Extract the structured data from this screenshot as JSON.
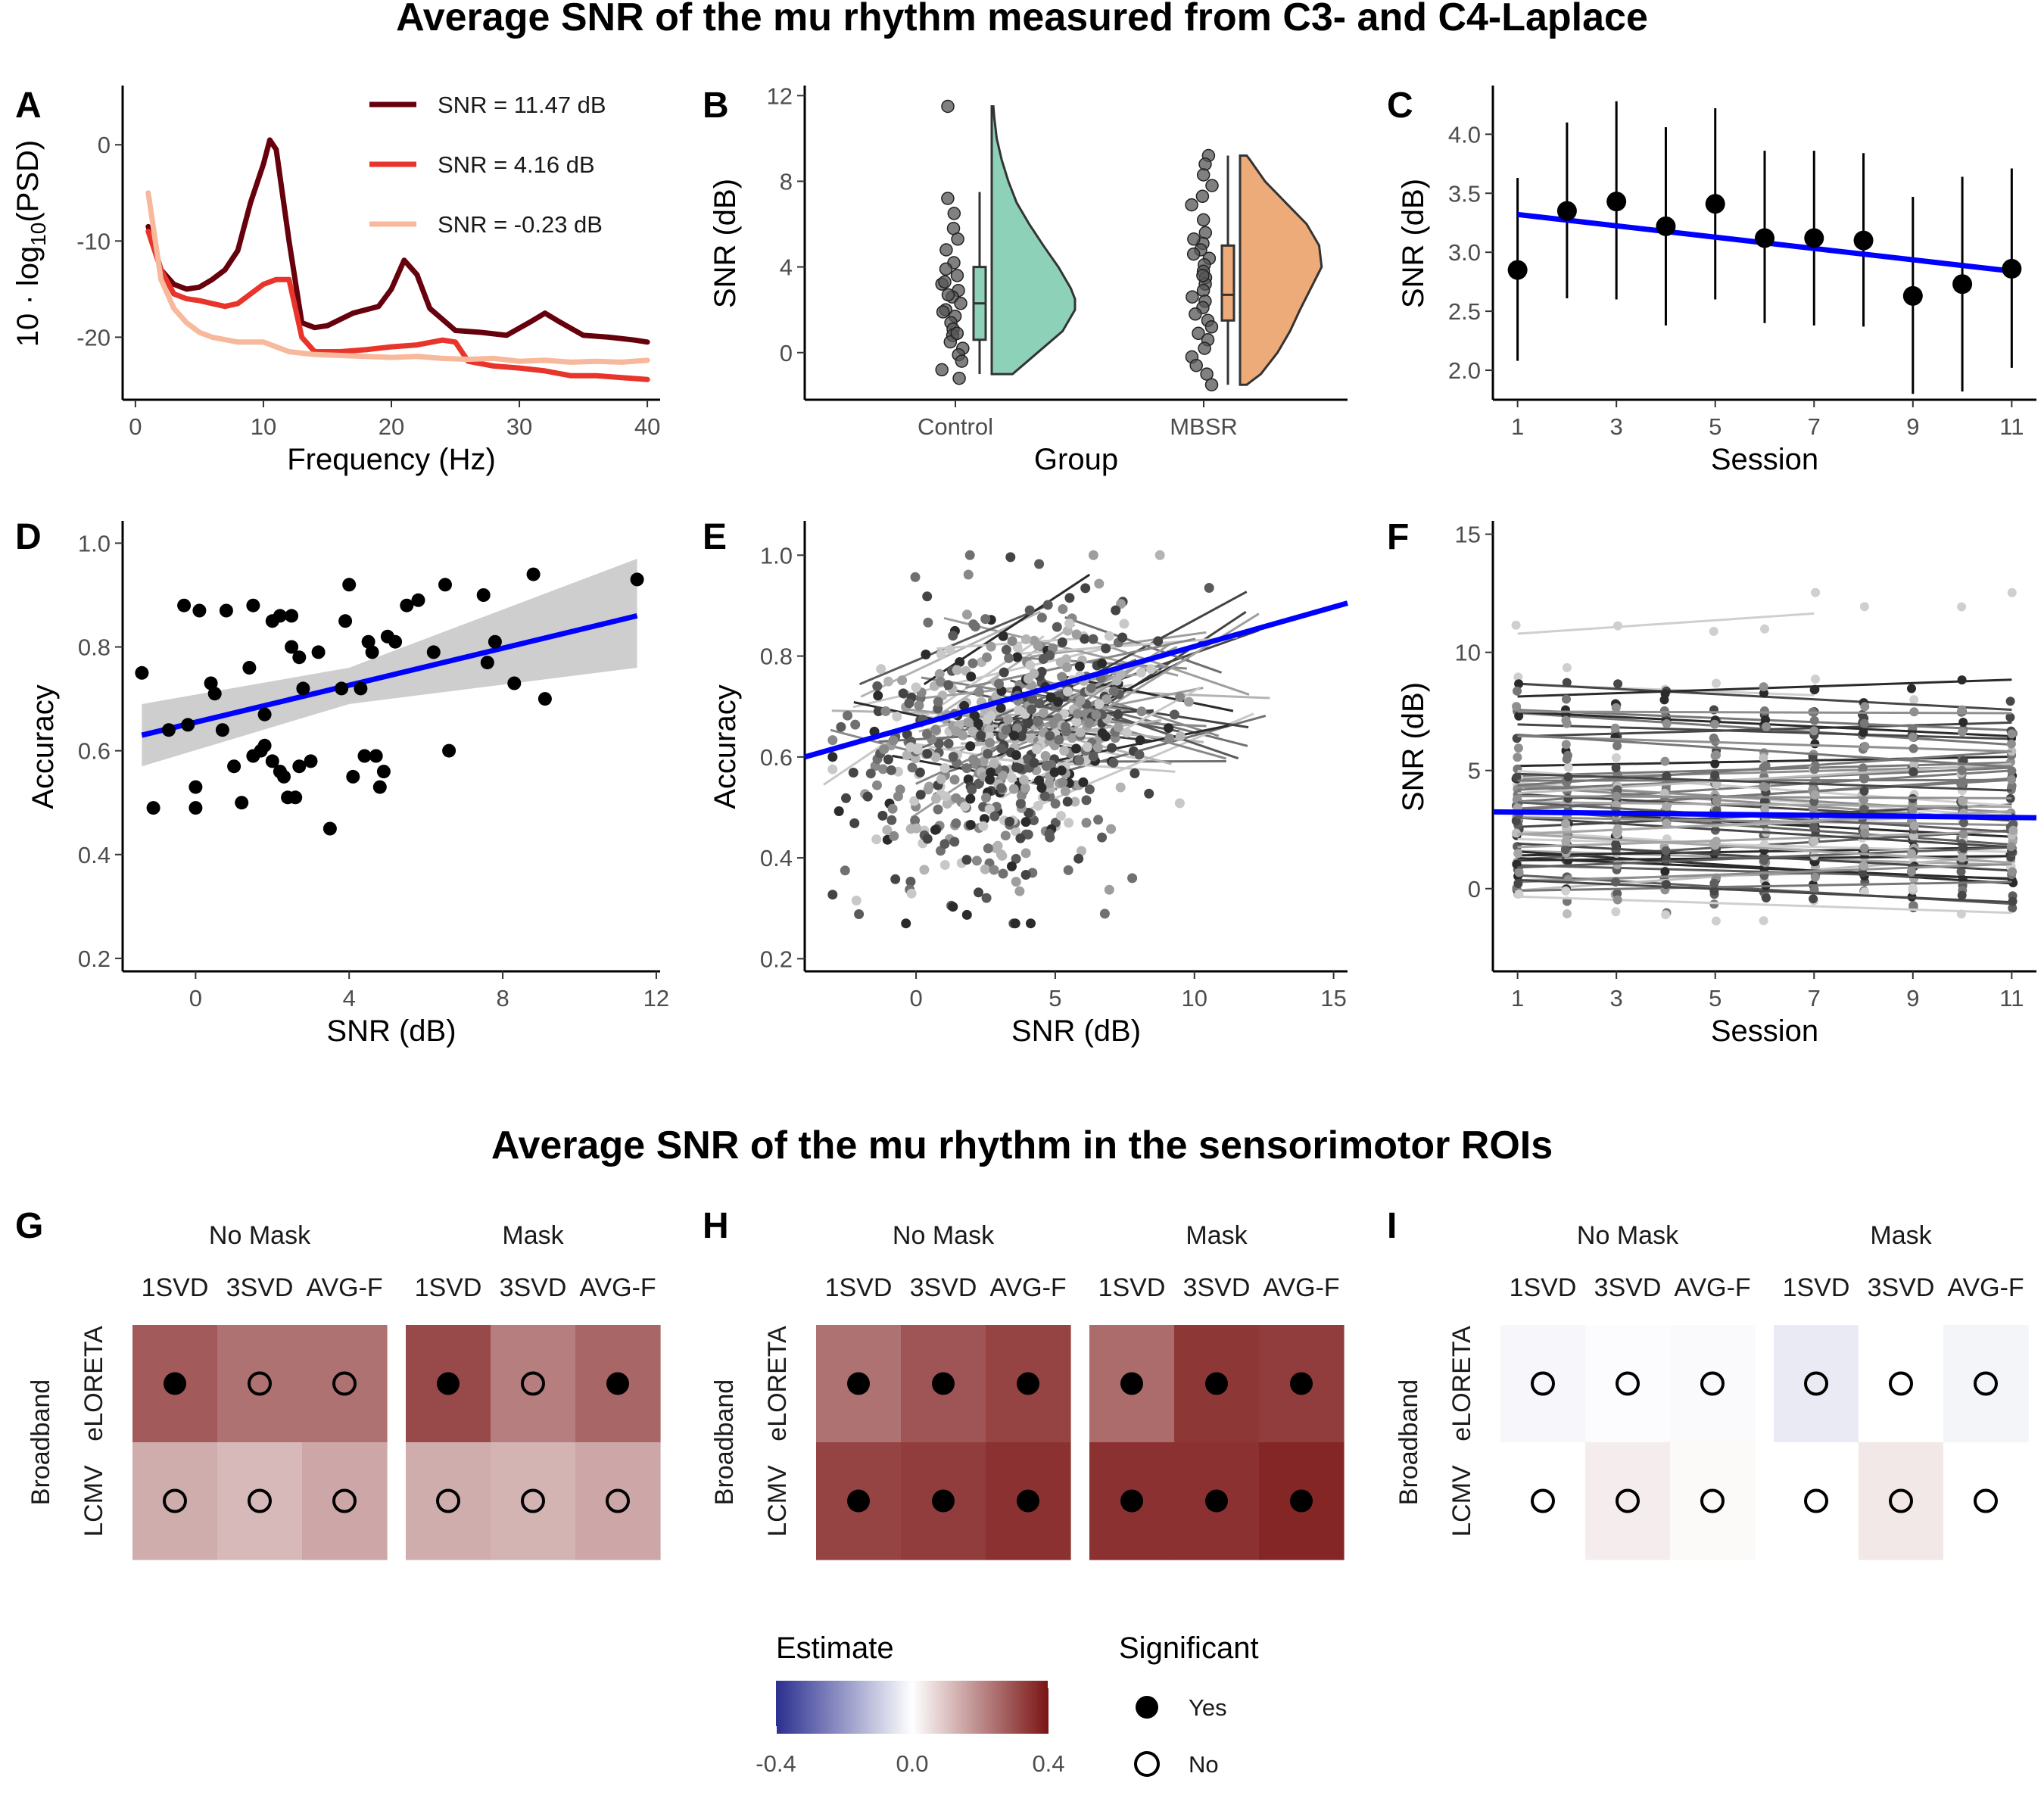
{
  "titles": {
    "main": "Average SNR of the mu rhythm measured from C3- and C4-Laplace",
    "roi": "Average SNR of the mu rhythm in the sensorimotor ROIs"
  },
  "colors": {
    "regression": "#0000ff",
    "psd_high": "#67000d",
    "psd_mid": "#e8342a",
    "psd_low": "#f7b89b",
    "violin_control": "#8ed1b9",
    "violin_mbsr": "#eeab7a",
    "heat_neg": "#3b3b9e",
    "heat_zero": "#ffffff",
    "heat_pos": "#7a1e1a"
  },
  "chart_data": [
    {
      "panel": "A",
      "type": "line",
      "xlabel": "Frequency (Hz)",
      "ylabel": "10 · log10(PSD)",
      "xlim": [
        -1,
        41
      ],
      "ylim": [
        -26.5,
        6
      ],
      "xticks": [
        0,
        10,
        20,
        30,
        40
      ],
      "yticks": [
        0,
        -10,
        -20
      ],
      "legend_position": "top-right",
      "series": [
        {
          "name": "SNR = 11.47 dB",
          "color": "#67000d",
          "x": [
            1,
            2,
            3,
            4,
            5,
            6,
            7,
            8,
            9,
            10,
            10.5,
            11,
            12,
            13,
            14,
            15,
            17,
            19,
            20,
            21,
            22,
            23,
            25,
            27,
            29,
            31,
            32,
            33,
            35,
            37,
            39,
            40
          ],
          "y": [
            -8.5,
            -13,
            -14.5,
            -15,
            -14.8,
            -14,
            -13,
            -11,
            -6,
            -2,
            0.5,
            -0.5,
            -10,
            -18.5,
            -19,
            -18.8,
            -17.5,
            -16.8,
            -15,
            -12,
            -13.5,
            -17,
            -19.3,
            -19.5,
            -19.8,
            -18.3,
            -17.5,
            -18.3,
            -19.8,
            -20,
            -20.3,
            -20.5
          ]
        },
        {
          "name": "SNR = 4.16 dB",
          "color": "#e8342a",
          "x": [
            1,
            2,
            3,
            4,
            5,
            6,
            7,
            8,
            9,
            10,
            11,
            12,
            13,
            14,
            16,
            18,
            20,
            22,
            24,
            25,
            26,
            28,
            30,
            32,
            34,
            36,
            38,
            40
          ],
          "y": [
            -9,
            -13,
            -15.5,
            -16,
            -16.2,
            -16.5,
            -16.8,
            -16.5,
            -15.5,
            -14.5,
            -14,
            -14,
            -20,
            -21.5,
            -21.5,
            -21.3,
            -21,
            -20.8,
            -20.3,
            -20.5,
            -22.5,
            -23,
            -23.2,
            -23.5,
            -24,
            -24,
            -24.2,
            -24.4
          ]
        },
        {
          "name": "SNR = -0.23 dB",
          "color": "#f7b89b",
          "x": [
            1,
            2,
            3,
            4,
            5,
            6,
            8,
            10,
            12,
            14,
            16,
            18,
            20,
            22,
            24,
            26,
            28,
            30,
            32,
            34,
            36,
            38,
            40
          ],
          "y": [
            -5,
            -14,
            -17,
            -18.5,
            -19.5,
            -20,
            -20.5,
            -20.5,
            -21.5,
            -21.8,
            -21.9,
            -22,
            -22.1,
            -22,
            -22.2,
            -22.3,
            -22.2,
            -22.5,
            -22.4,
            -22.6,
            -22.5,
            -22.6,
            -22.4
          ]
        }
      ]
    },
    {
      "panel": "B",
      "type": "violin",
      "xlabel": "Group",
      "ylabel": "SNR (dB)",
      "ylim": [
        -2.2,
        12.4
      ],
      "yticks": [
        0,
        4,
        8,
        12
      ],
      "categories": [
        "Control",
        "MBSR"
      ],
      "box": [
        {
          "group": "Control",
          "min": -1,
          "q1": 0.6,
          "median": 2.3,
          "q3": 4,
          "max": 7.5
        },
        {
          "group": "MBSR",
          "min": -1.5,
          "q1": 1.5,
          "median": 2.7,
          "q3": 5,
          "max": 9.2
        }
      ],
      "points": [
        {
          "group": "Control",
          "values": [
            11.5,
            7.2,
            6.5,
            5.8,
            5.3,
            4.8,
            4.2,
            3.9,
            3.6,
            3.2,
            2.9,
            2.6,
            2.3,
            2.0,
            1.7,
            1.4,
            1.1,
            0.8,
            0.5,
            0.2,
            -0.1,
            -0.4,
            -0.8,
            -1.2,
            1.9,
            2.7,
            3.3,
            0.9
          ]
        },
        {
          "group": "MBSR",
          "values": [
            9.2,
            8.8,
            8.3,
            7.8,
            7.3,
            6.9,
            6.2,
            5.6,
            5.1,
            4.8,
            4.6,
            4.4,
            4.1,
            3.8,
            3.5,
            3.2,
            2.9,
            2.6,
            2.4,
            2.1,
            1.8,
            1.5,
            1.2,
            0.9,
            0.6,
            0.2,
            -0.2,
            -0.6,
            -1.0,
            -1.5,
            3.6,
            5.3
          ]
        }
      ],
      "density": [
        {
          "group": "Control",
          "y": [
            -1,
            0,
            1,
            2,
            2.5,
            3,
            4,
            5,
            6,
            7,
            8,
            9,
            10,
            11,
            11.5
          ],
          "d": [
            0.25,
            0.55,
            0.85,
            1.0,
            1.0,
            0.95,
            0.8,
            0.62,
            0.45,
            0.3,
            0.2,
            0.12,
            0.06,
            0.03,
            0.02
          ]
        },
        {
          "group": "MBSR",
          "y": [
            -1.5,
            -1,
            0,
            1,
            2,
            3,
            4,
            5,
            6,
            7,
            8,
            9,
            9.2
          ],
          "d": [
            0.08,
            0.25,
            0.45,
            0.6,
            0.72,
            0.85,
            0.98,
            0.95,
            0.8,
            0.55,
            0.3,
            0.12,
            0.08
          ]
        }
      ]
    },
    {
      "panel": "C",
      "type": "errorbar",
      "xlabel": "Session",
      "ylabel": "SNR (dB)",
      "xlim": [
        0.5,
        11.5
      ],
      "ylim": [
        1.75,
        4.4
      ],
      "xticks": [
        1,
        3,
        5,
        7,
        9,
        11
      ],
      "yticks": [
        2.0,
        2.5,
        3.0,
        3.5,
        4.0
      ],
      "x": [
        1,
        2,
        3,
        4,
        5,
        6,
        7,
        8,
        9,
        10,
        11
      ],
      "y": [
        2.85,
        3.35,
        3.43,
        3.22,
        3.41,
        3.12,
        3.12,
        3.1,
        2.63,
        2.73,
        2.86
      ],
      "lower": [
        2.08,
        2.61,
        2.6,
        2.38,
        2.6,
        2.4,
        2.38,
        2.37,
        1.8,
        1.82,
        2.02
      ],
      "upper": [
        3.63,
        4.1,
        4.28,
        4.06,
        4.22,
        3.86,
        3.86,
        3.84,
        3.47,
        3.64,
        3.71
      ],
      "fit": {
        "x": [
          1,
          11
        ],
        "y": [
          3.32,
          2.84
        ]
      }
    },
    {
      "panel": "D",
      "type": "scatter",
      "xlabel": "SNR (dB)",
      "ylabel": "Accuracy",
      "xlim": [
        -1.9,
        12.1
      ],
      "ylim": [
        0.175,
        1.04
      ],
      "xticks": [
        0,
        4,
        8,
        12
      ],
      "yticks": [
        0.2,
        0.4,
        0.6,
        0.8,
        1.0
      ],
      "x": [
        -1.4,
        -1.1,
        -0.7,
        -0.3,
        -0.2,
        0.0,
        0.0,
        0.1,
        0.4,
        0.5,
        0.7,
        0.8,
        1.0,
        1.2,
        1.4,
        1.5,
        1.5,
        1.7,
        1.8,
        1.8,
        2.0,
        2.0,
        2.2,
        2.2,
        2.3,
        2.4,
        2.5,
        2.5,
        2.6,
        2.7,
        2.7,
        2.8,
        3.0,
        3.2,
        3.5,
        3.8,
        3.9,
        4.0,
        4.1,
        4.3,
        4.4,
        4.5,
        4.6,
        4.7,
        4.8,
        4.9,
        5.0,
        5.2,
        5.5,
        5.8,
        6.2,
        6.5,
        6.6,
        7.5,
        7.6,
        7.8,
        8.3,
        8.8,
        9.1,
        11.5
      ],
      "y": [
        0.75,
        0.49,
        0.64,
        0.88,
        0.65,
        0.53,
        0.49,
        0.87,
        0.73,
        0.71,
        0.64,
        0.87,
        0.57,
        0.5,
        0.76,
        0.59,
        0.88,
        0.6,
        0.67,
        0.61,
        0.85,
        0.58,
        0.86,
        0.56,
        0.55,
        0.51,
        0.86,
        0.8,
        0.51,
        0.57,
        0.78,
        0.72,
        0.58,
        0.79,
        0.45,
        0.72,
        0.85,
        0.92,
        0.55,
        0.72,
        0.59,
        0.81,
        0.79,
        0.59,
        0.53,
        0.56,
        0.82,
        0.81,
        0.88,
        0.89,
        0.79,
        0.92,
        0.6,
        0.9,
        0.77,
        0.81,
        0.73,
        0.94,
        0.7,
        0.93
      ],
      "fit": {
        "x": [
          -1.4,
          11.5
        ],
        "y": [
          0.63,
          0.86
        ]
      },
      "ci": {
        "x": [
          -1.4,
          4,
          11.5
        ],
        "lower": [
          0.57,
          0.69,
          0.76
        ],
        "upper": [
          0.69,
          0.76,
          0.97
        ]
      }
    },
    {
      "panel": "E",
      "type": "scatter",
      "xlabel": "SNR (dB)",
      "ylabel": "Accuracy",
      "xlim": [
        -4,
        15.5
      ],
      "ylim": [
        0.175,
        1.065
      ],
      "xticks": [
        0,
        5,
        10,
        15
      ],
      "yticks": [
        0.2,
        0.4,
        0.6,
        0.8,
        1.0
      ],
      "point_count": 600,
      "fit": {
        "x": [
          -4,
          15.5
        ],
        "y": [
          0.6,
          0.905
        ]
      }
    },
    {
      "panel": "F",
      "type": "line",
      "xlabel": "Session",
      "ylabel": "SNR (dB)",
      "xlim": [
        0.5,
        11.5
      ],
      "ylim": [
        -3.5,
        15.5
      ],
      "xticks": [
        1,
        3,
        5,
        7,
        9,
        11
      ],
      "yticks": [
        0,
        5,
        10,
        15
      ],
      "subject_count": 60,
      "fit": {
        "x": [
          0.5,
          11.5
        ],
        "y": [
          3.25,
          3.0
        ]
      }
    },
    {
      "panel": "G",
      "type": "heatmap",
      "facets": [
        "No Mask",
        "Mask"
      ],
      "columns": [
        "1SVD",
        "3SVD",
        "AVG-F"
      ],
      "rows": [
        "eLORETA",
        "LCMV"
      ],
      "row_group": "Broadband",
      "estimate": [
        [
          0.28,
          0.24,
          0.24,
          0.31,
          0.22,
          0.26
        ],
        [
          0.14,
          0.12,
          0.15,
          0.14,
          0.13,
          0.15
        ]
      ],
      "significant": [
        [
          true,
          false,
          false,
          true,
          false,
          true
        ],
        [
          false,
          false,
          false,
          false,
          false,
          false
        ]
      ]
    },
    {
      "panel": "H",
      "type": "heatmap",
      "facets": [
        "No Mask",
        "Mask"
      ],
      "columns": [
        "1SVD",
        "3SVD",
        "AVG-F"
      ],
      "rows": [
        "eLORETA",
        "LCMV"
      ],
      "row_group": "Broadband",
      "estimate": [
        [
          0.24,
          0.29,
          0.32,
          0.25,
          0.34,
          0.33
        ],
        [
          0.32,
          0.33,
          0.35,
          0.35,
          0.35,
          0.37
        ]
      ],
      "significant": [
        [
          true,
          true,
          true,
          true,
          true,
          true
        ],
        [
          true,
          true,
          true,
          true,
          true,
          true
        ]
      ]
    },
    {
      "panel": "I",
      "type": "heatmap",
      "facets": [
        "No Mask",
        "Mask"
      ],
      "columns": [
        "1SVD",
        "3SVD",
        "AVG-F"
      ],
      "rows": [
        "eLORETA",
        "LCMV"
      ],
      "row_group": "Broadband",
      "estimate": [
        [
          -0.015,
          -0.005,
          -0.01,
          -0.04,
          0.0,
          -0.02
        ],
        [
          0.0,
          0.03,
          0.01,
          0.0,
          0.04,
          0.0
        ]
      ],
      "significant": [
        [
          false,
          false,
          false,
          false,
          false,
          false
        ],
        [
          false,
          false,
          false,
          false,
          false,
          false
        ]
      ]
    }
  ],
  "legend": {
    "estimate_title": "Estimate",
    "estimate_ticks": [
      "-0.4",
      "0.0",
      "0.4"
    ],
    "significant_title": "Significant",
    "yes": "Yes",
    "no": "No"
  }
}
